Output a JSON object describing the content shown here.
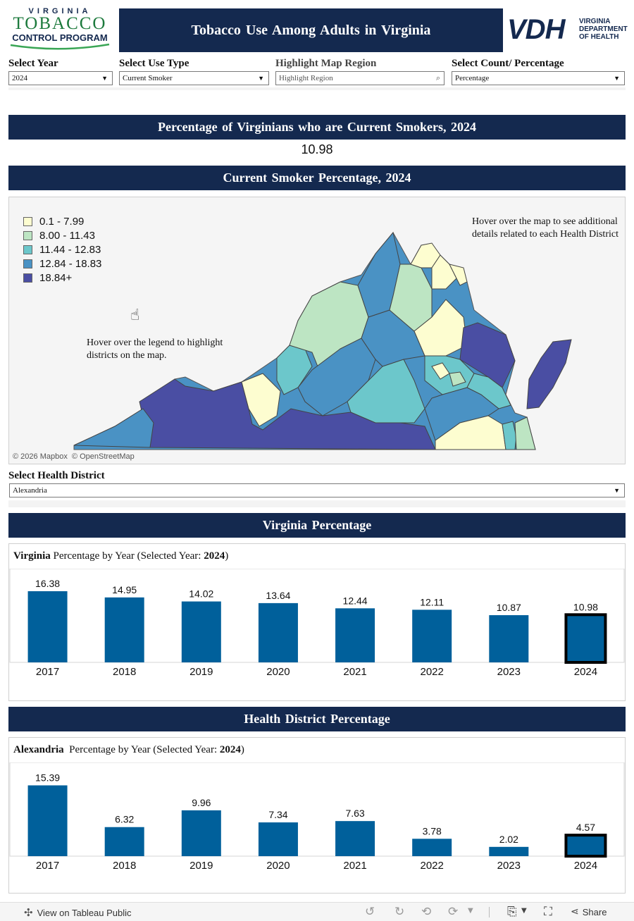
{
  "colors": {
    "navy": "#14294f",
    "bar": "#00609b",
    "legend": [
      "#fdfdd0",
      "#bde5c3",
      "#6cc7cb",
      "#4a92c4",
      "#4a4ea3"
    ]
  },
  "header": {
    "logo_line1": "VIRGINIA",
    "logo_line2": "TOBACCO",
    "logo_line3": "CONTROL PROGRAM",
    "title": "Tobacco Use Among Adults in Virginia",
    "vdh_mark": "VDH",
    "vdh_line1": "VIRGINIA",
    "vdh_line2": "DEPARTMENT",
    "vdh_line3": "OF HEALTH"
  },
  "filters": {
    "year": {
      "label": "Select Year",
      "value": "2024"
    },
    "use_type": {
      "label": "Select Use Type",
      "value": "Current Smoker"
    },
    "highlight": {
      "label": "Highlight Map Region",
      "placeholder": "Highlight Region"
    },
    "count_pct": {
      "label": "Select Count/ Percentage",
      "value": "Percentage"
    }
  },
  "summary": {
    "title": "Percentage of Virginians who are Current Smokers, 2024",
    "value": "10.98"
  },
  "map": {
    "title": "Current Smoker Percentage, 2024",
    "legend": [
      "0.1 - 7.99",
      "8.00 - 11.43",
      "11.44 - 12.83",
      "12.84 - 18.83",
      "18.84+"
    ],
    "hover_map_note": "Hover over the map to see additional details related to each Health District",
    "hover_legend_note": "Hover over the legend to highlight districts on the map.",
    "attribution": "© 2026 Mapbox  © OpenStreetMap"
  },
  "district_filter": {
    "label": "Select Health District",
    "value": "Alexandria"
  },
  "virginia_section": {
    "bar_title": "Virginia Percentage",
    "chart_title_bold": "Virginia",
    "chart_title_rest": " Percentage by Year (Selected Year: ",
    "chart_title_year": "2024",
    "chart_title_close": ")"
  },
  "district_section": {
    "bar_title": "Health District Percentage",
    "chart_title_bold": "Alexandria",
    "chart_title_rest": "  Percentage by Year (Selected Year: ",
    "chart_title_year": "2024",
    "chart_title_close": ")"
  },
  "chart_data": [
    {
      "type": "bar",
      "title": "Virginia Percentage by Year (Selected Year: 2024)",
      "categories": [
        "2017",
        "2018",
        "2019",
        "2020",
        "2021",
        "2022",
        "2023",
        "2024"
      ],
      "values": [
        16.38,
        14.95,
        14.02,
        13.64,
        12.44,
        12.11,
        10.87,
        10.98
      ],
      "value_labels": [
        "16.38",
        "14.95",
        "14.02",
        "13.64",
        "12.44",
        "12.11",
        "10.87",
        "10.98"
      ],
      "highlighted": "2024",
      "ylim": [
        0,
        18
      ]
    },
    {
      "type": "bar",
      "title": "Alexandria Percentage by Year (Selected Year: 2024)",
      "categories": [
        "2017",
        "2018",
        "2019",
        "2020",
        "2021",
        "2022",
        "2023",
        "2024"
      ],
      "values": [
        15.39,
        6.32,
        9.96,
        7.34,
        7.63,
        3.78,
        2.02,
        4.57
      ],
      "value_labels": [
        "15.39",
        "6.32",
        "9.96",
        "7.34",
        "7.63",
        "3.78",
        "2.02",
        "4.57"
      ],
      "highlighted": "2024",
      "ylim": [
        0,
        17
      ]
    }
  ],
  "toolbar": {
    "view_label": "View on Tableau Public",
    "share_label": "Share"
  }
}
